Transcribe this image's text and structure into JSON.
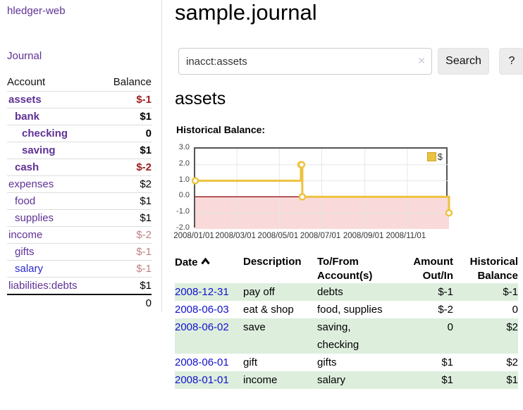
{
  "app": {
    "brand": "hledger-web",
    "nav": {
      "journal": "Journal"
    }
  },
  "sidebar": {
    "headers": {
      "account": "Account",
      "balance": "Balance"
    },
    "accounts": [
      {
        "name": "assets",
        "balance": "$-1"
      },
      {
        "name": "bank",
        "balance": "$1"
      },
      {
        "name": "checking",
        "balance": "0"
      },
      {
        "name": "saving",
        "balance": "$1"
      },
      {
        "name": "cash",
        "balance": "$-2"
      },
      {
        "name": "expenses",
        "balance": "$2"
      },
      {
        "name": "food",
        "balance": "$1"
      },
      {
        "name": "supplies",
        "balance": "$1"
      },
      {
        "name": "income",
        "balance": "$-2"
      },
      {
        "name": "gifts",
        "balance": "$-1"
      },
      {
        "name": "salary",
        "balance": "$-1"
      },
      {
        "name": "liabilities:debts",
        "balance": "$1"
      }
    ],
    "total": "0"
  },
  "main": {
    "title": "sample.journal",
    "search": {
      "value": "inacct:assets",
      "clear_icon": "✕",
      "search_button": "Search",
      "help_button": "?"
    },
    "account_heading": "assets",
    "chart_title": "Historical Balance:"
  },
  "chart_data": {
    "type": "line",
    "style": "step",
    "series": [
      {
        "name": "$",
        "points": [
          {
            "date": "2008-01-01",
            "value": 1
          },
          {
            "date": "2008-06-01",
            "value": 2
          },
          {
            "date": "2008-06-02",
            "value": 2
          },
          {
            "date": "2008-06-03",
            "value": 0
          },
          {
            "date": "2008-12-31",
            "value": -1
          }
        ]
      }
    ],
    "xrange": [
      "2008-01-01",
      "2008-12-31"
    ],
    "ylim": [
      -2,
      3
    ],
    "yticks": [
      "3.0",
      "2.0",
      "1.0",
      "0.0",
      "-1.0",
      "-2.0"
    ],
    "ytick_values": [
      3,
      2,
      1,
      0,
      -1,
      -2
    ],
    "xticks": [
      "2008/01/01",
      "2008/03/01",
      "2008/05/01",
      "2008/07/01",
      "2008/09/01",
      "2008/11/01"
    ],
    "xtick_dates": [
      "2008-01-01",
      "2008-03-01",
      "2008-05-01",
      "2008-07-01",
      "2008-09-01",
      "2008-11-01"
    ],
    "grid": true,
    "legend_position": "top-right",
    "colors": {
      "line": "#edc240",
      "marker_fill": "#ffffff",
      "negative_fill": "#f9d9d9",
      "zero_line": "#8b0000",
      "grid": "#e6e6e6",
      "border": "#545454"
    }
  },
  "register": {
    "headers": {
      "date": "Date",
      "description": "Description",
      "accounts_l1": "To/From",
      "accounts_l2": "Account(s)",
      "amount_l1": "Amount",
      "amount_l2": "Out/In",
      "balance_l1": "Historical",
      "balance_l2": "Balance"
    },
    "rows": [
      {
        "date": "2008-12-31",
        "description": "pay off",
        "accounts": "debts",
        "amount": "$-1",
        "balance": "$-1"
      },
      {
        "date": "2008-06-03",
        "description": "eat & shop",
        "accounts": "food, supplies",
        "amount": "$-2",
        "balance": "0"
      },
      {
        "date": "2008-06-02",
        "description": "save",
        "accounts": "saving, checking",
        "amount": "0",
        "balance": "$2"
      },
      {
        "date": "2008-06-01",
        "description": "gift",
        "accounts": "gifts",
        "amount": "$1",
        "balance": "$2"
      },
      {
        "date": "2008-01-01",
        "description": "income",
        "accounts": "salary",
        "amount": "$1",
        "balance": "$1"
      }
    ]
  }
}
